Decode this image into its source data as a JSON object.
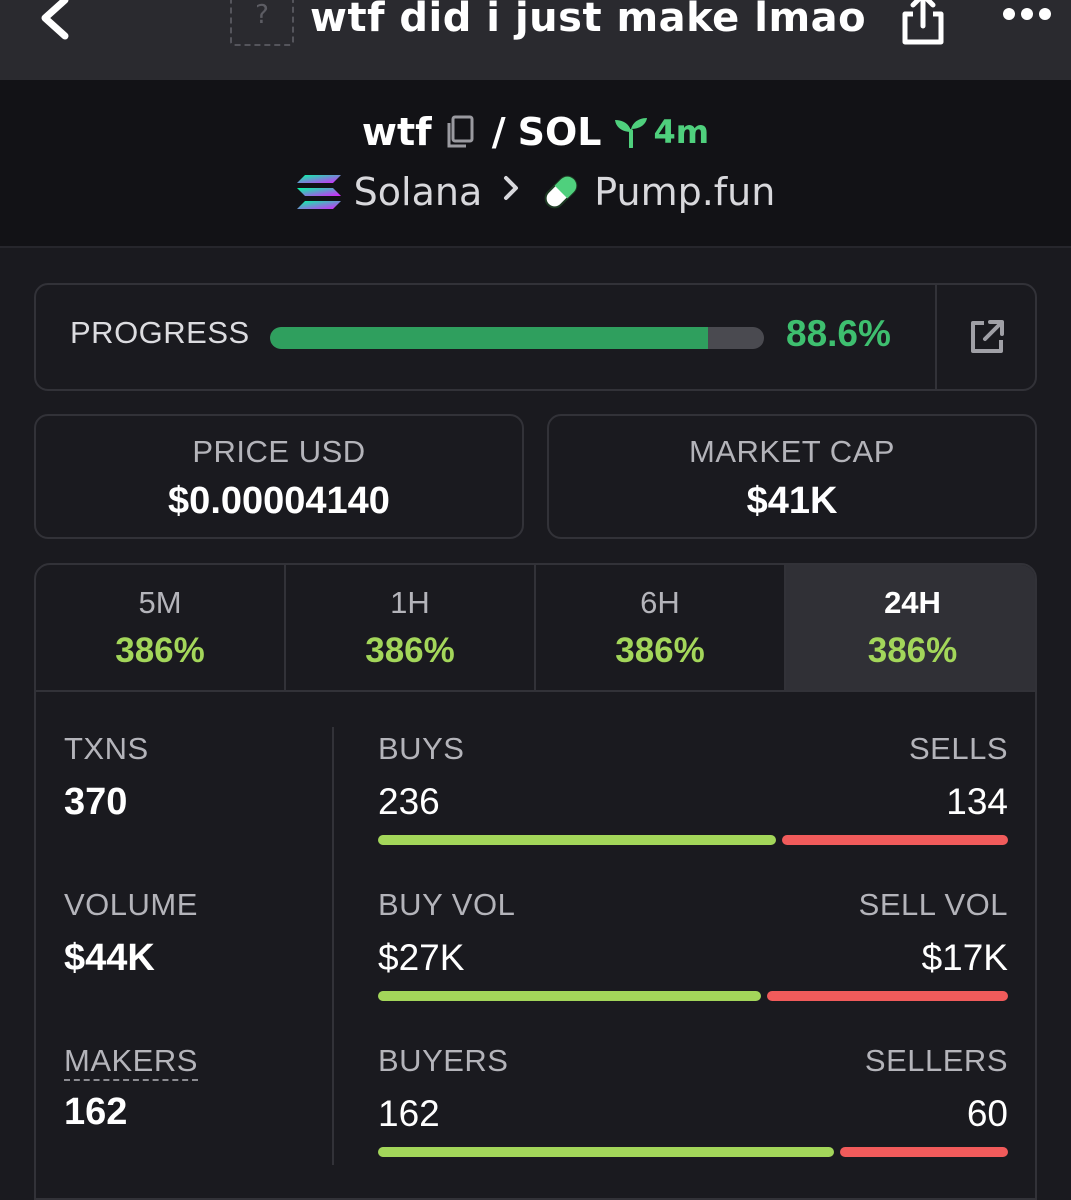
{
  "topbar": {
    "title": "wtf did i just make lmao",
    "avatar_placeholder": "?",
    "icons": [
      "chevron-left-icon",
      "share-icon",
      "more-icon"
    ]
  },
  "pair": {
    "symbol": "wtf",
    "separator": "/",
    "quote": "SOL",
    "age": "4m",
    "chain": "Solana",
    "dex": "Pump.fun"
  },
  "progress": {
    "label": "PROGRESS",
    "value": "88.6%",
    "fraction": 0.886
  },
  "stats": {
    "price_label": "PRICE USD",
    "price_value": "$0.00004140",
    "mcap_label": "MARKET CAP",
    "mcap_value": "$41K"
  },
  "timeframes": [
    {
      "name": "5M",
      "change": "386%"
    },
    {
      "name": "1H",
      "change": "386%"
    },
    {
      "name": "6H",
      "change": "386%"
    },
    {
      "name": "24H",
      "change": "386%",
      "active": true
    }
  ],
  "metrics": {
    "txns_label": "TXNS",
    "txns_value": "370",
    "volume_label": "VOLUME",
    "volume_value": "$44K",
    "makers_label": "MAKERS",
    "makers_value": "162",
    "buys_label": "BUYS",
    "buys_value": "236",
    "sells_label": "SELLS",
    "sells_value": "134",
    "buys_share": 0.638,
    "buyvol_label": "BUY VOL",
    "buyvol_value": "$27K",
    "sellvol_label": "SELL VOL",
    "sellvol_value": "$17K",
    "buyvol_share": 0.614,
    "buyers_label": "BUYERS",
    "buyers_value": "162",
    "sellers_label": "SELLERS",
    "sellers_value": "60",
    "buyers_share": 0.73
  },
  "colors": {
    "green": "#3ebf6f",
    "lime": "#a3d65a",
    "red": "#f15b5b",
    "background": "#1a1a1f"
  }
}
